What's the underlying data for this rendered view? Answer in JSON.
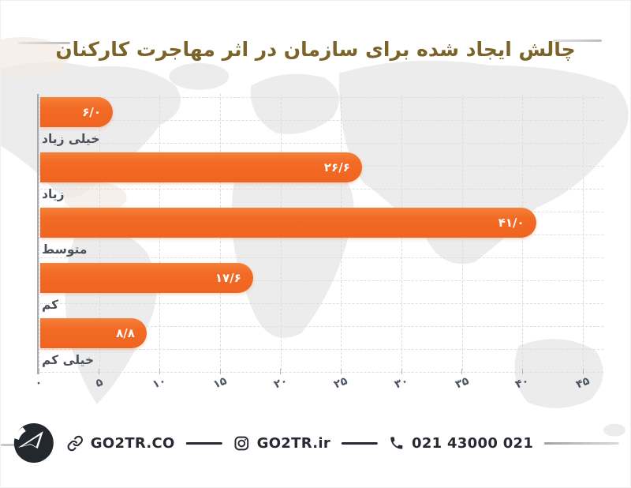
{
  "title": {
    "text": "چالش ایجاد شده برای سازمان در اثر مهاجرت کارکنان",
    "color": "#7a6429"
  },
  "chart_data": {
    "type": "bar",
    "orientation": "horizontal",
    "title": "چالش ایجاد شده برای سازمان در اثر مهاجرت کارکنان",
    "categories": [
      "خیلی زیاد",
      "زیاد",
      "متوسط",
      "کم",
      "خیلی کم"
    ],
    "values": [
      6.0,
      26.6,
      41.0,
      17.6,
      8.8
    ],
    "value_labels": [
      "۶/۰",
      "۲۶/۶",
      "۴۱/۰",
      "۱۷/۶",
      "۸/۸"
    ],
    "x_ticks": [
      0,
      5,
      10,
      15,
      20,
      25,
      30,
      35,
      40,
      45
    ],
    "x_tick_labels": [
      "۰",
      "۵",
      "۱۰",
      "۱۵",
      "۲۰",
      "۲۵",
      "۳۰",
      "۳۵",
      "۴۰",
      "۴۵"
    ],
    "xlim": [
      0,
      45
    ],
    "grid": "dashed-both-axes",
    "legend": "none",
    "bar_color": "#f26b25",
    "value_label_color": "#ffffff"
  },
  "footer": {
    "website_label": "GO2TR.CO",
    "instagram_label": "GO2TR.ir",
    "phone_label": "021 43000 021",
    "icons": {
      "logo": "go2tr-airplane-logo",
      "website": "link-icon",
      "instagram": "instagram-icon",
      "phone": "phone-icon"
    }
  },
  "colors": {
    "bar_orange": "#f26b25",
    "title_brown": "#7a6429",
    "footer_dark": "#262b33",
    "map_gray": "#ececec",
    "grid_gray": "#dcdee1"
  }
}
